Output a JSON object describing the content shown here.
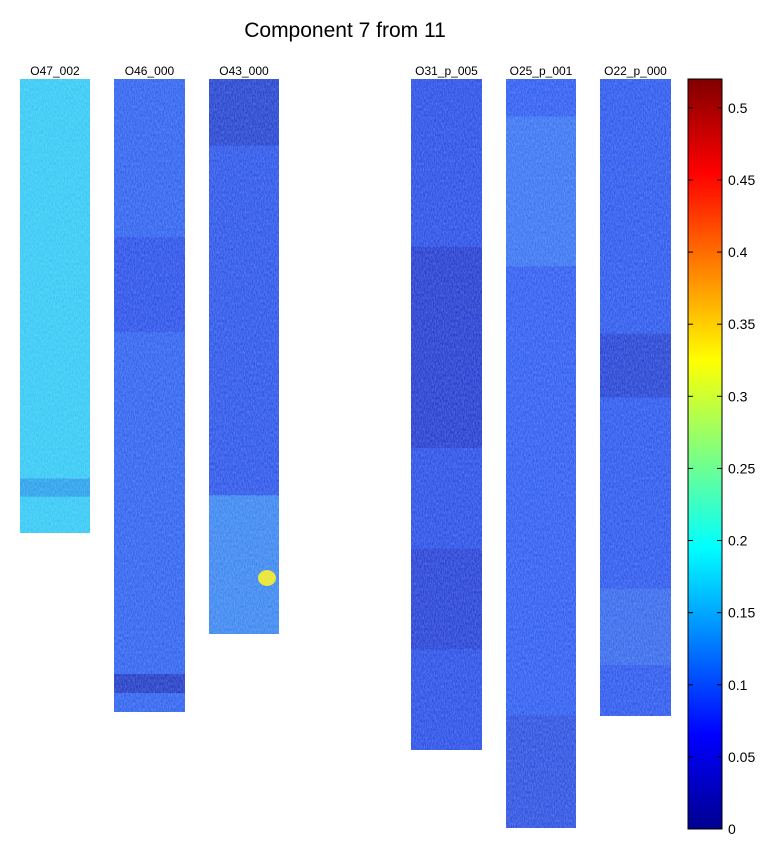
{
  "chart_data": {
    "type": "heatmap",
    "title": "Component 7 from 11",
    "cores": [
      {
        "name": "O47_002",
        "base_color": "#22c4f4",
        "bands": [
          {
            "from": 0.88,
            "to": 0.92,
            "color": "#1590e6"
          }
        ]
      },
      {
        "name": "O46_000",
        "base_color": "#1d55ee",
        "bands": [
          {
            "from": 0.25,
            "to": 0.4,
            "color": "#173fe6"
          },
          {
            "from": 0.94,
            "to": 0.97,
            "color": "#0c25b8"
          }
        ]
      },
      {
        "name": "O43_000",
        "base_color": "#1a47e8",
        "bands": [
          {
            "from": 0.0,
            "to": 0.12,
            "color": "#1231c7"
          },
          {
            "from": 0.75,
            "to": 1.0,
            "color": "#2e86f0"
          }
        ],
        "hotspot": {
          "value": 0.33,
          "color": "#e6e21a"
        }
      },
      {
        "name": "O31_p_005",
        "base_color": "#1740e5",
        "bands": [
          {
            "from": 0.25,
            "to": 0.55,
            "color": "#1029c9"
          },
          {
            "from": 0.7,
            "to": 0.85,
            "color": "#132fd0"
          }
        ]
      },
      {
        "name": "O25_p_001",
        "base_color": "#1c4ff0",
        "bands": [
          {
            "from": 0.05,
            "to": 0.25,
            "color": "#2a6cf2"
          },
          {
            "from": 0.85,
            "to": 1.0,
            "color": "#1a3fdc"
          }
        ]
      },
      {
        "name": "O22_p_000",
        "base_color": "#1a4aec",
        "bands": [
          {
            "from": 0.4,
            "to": 0.5,
            "color": "#1230cc"
          },
          {
            "from": 0.8,
            "to": 0.92,
            "color": "#2860ea"
          }
        ]
      }
    ],
    "colorbar": {
      "colormap": "jet",
      "range": [
        0,
        0.52
      ],
      "ticks": [
        0,
        0.05,
        0.1,
        0.15,
        0.2,
        0.25,
        0.3,
        0.35,
        0.4,
        0.45,
        0.5
      ],
      "tick_labels": [
        "0",
        "0.05",
        "0.1",
        "0.15",
        "0.2",
        "0.25",
        "0.3",
        "0.35",
        "0.4",
        "0.45",
        "0.5"
      ]
    }
  }
}
